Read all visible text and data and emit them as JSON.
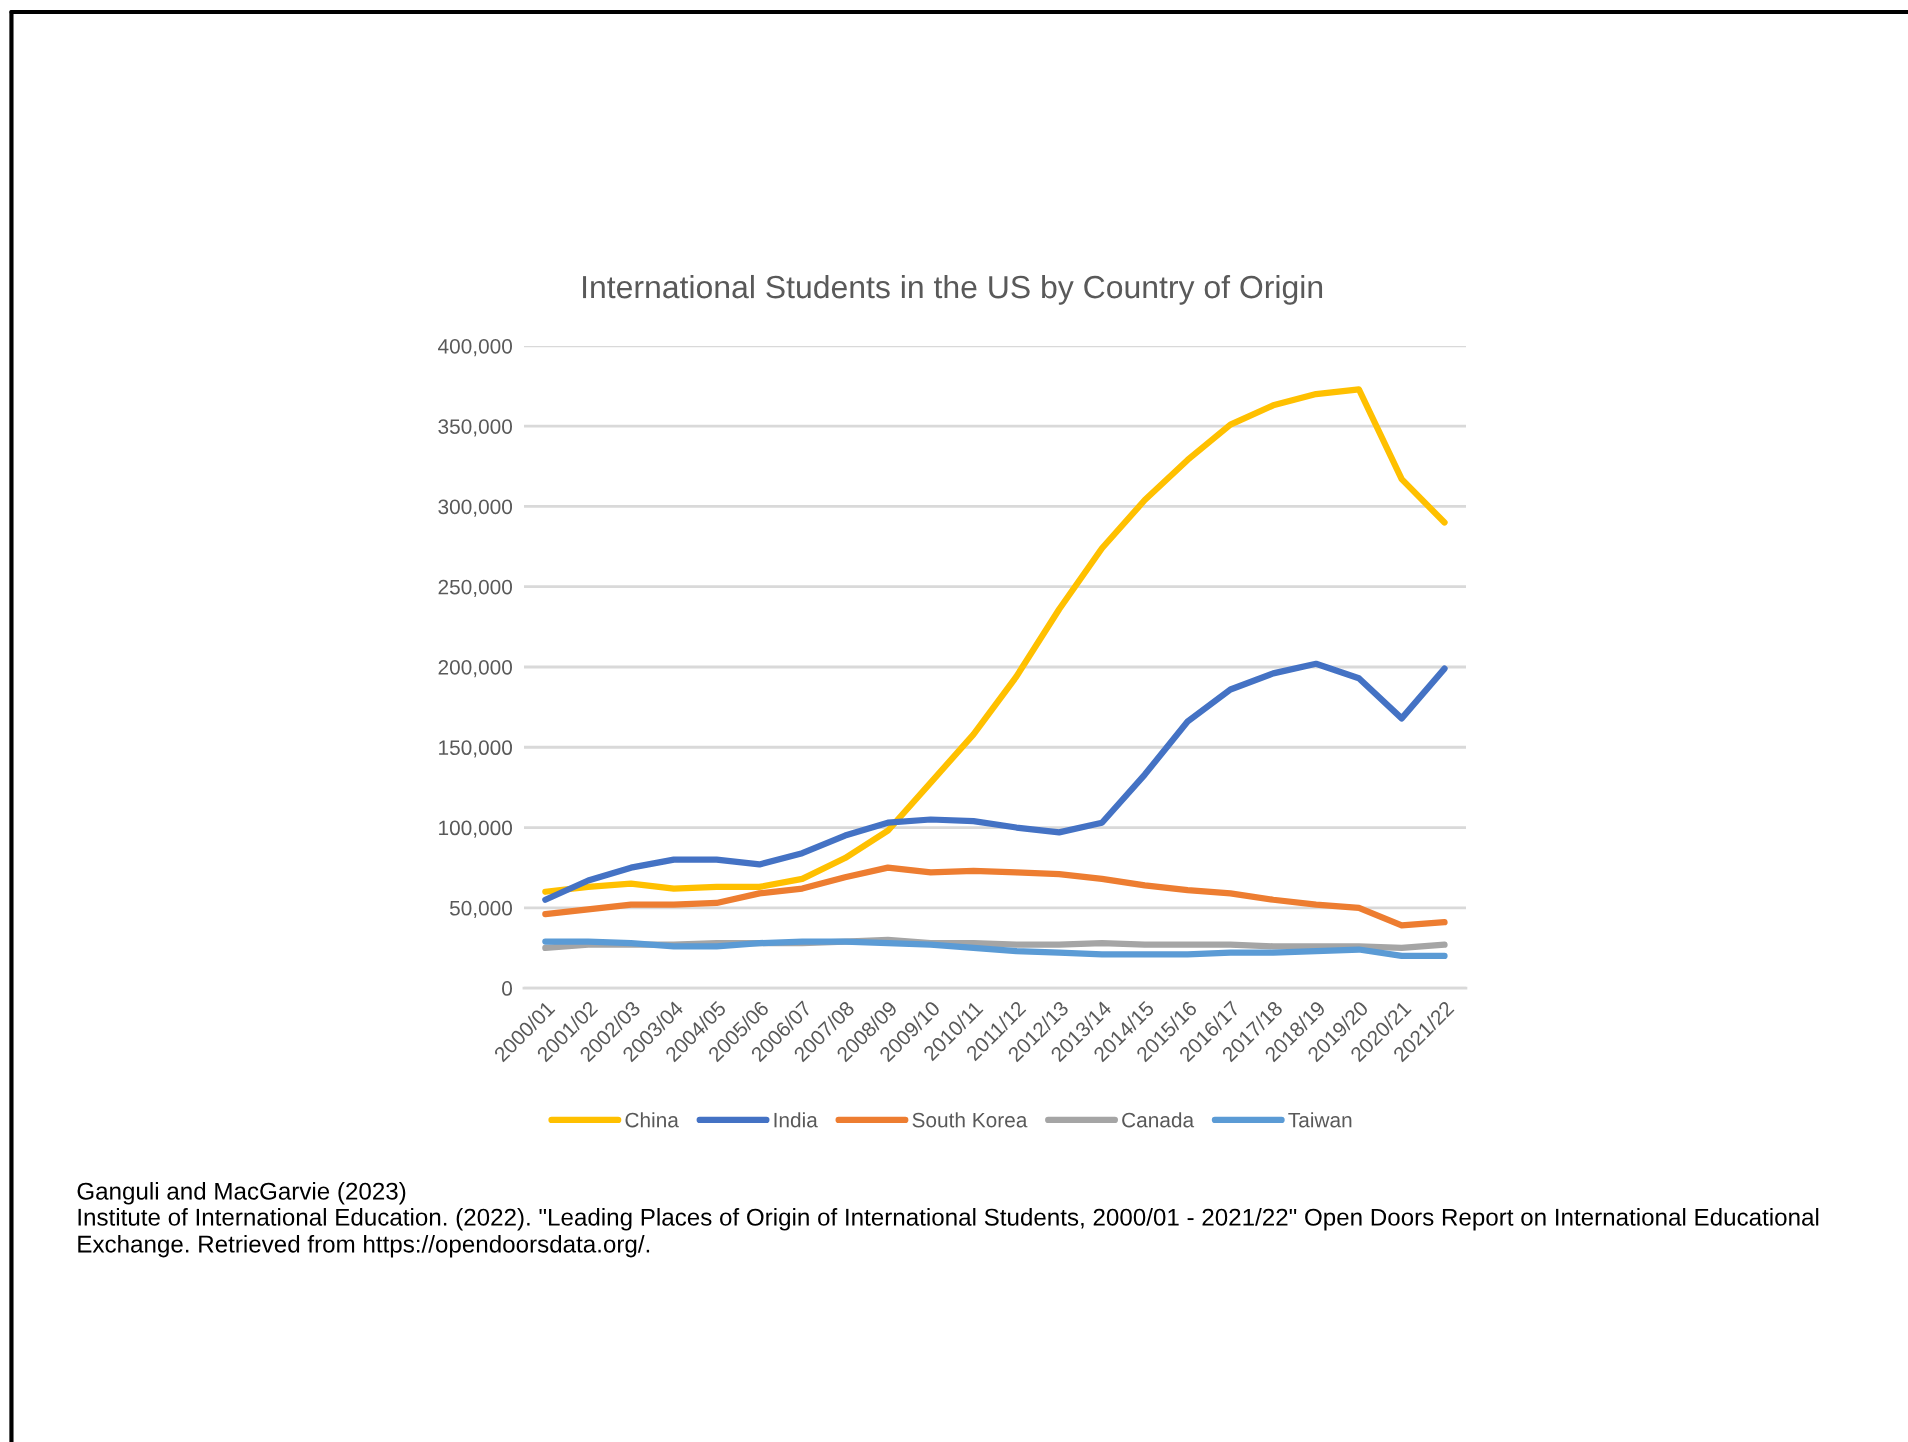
{
  "chart_data": {
    "type": "line",
    "title": "International Students in the US by Country of Origin",
    "categories": [
      "2000/01",
      "2001/02",
      "2002/03",
      "2003/04",
      "2004/05",
      "2005/06",
      "2006/07",
      "2007/08",
      "2008/09",
      "2009/10",
      "2010/11",
      "2011/12",
      "2012/13",
      "2013/14",
      "2014/15",
      "2015/16",
      "2016/17",
      "2017/18",
      "2018/19",
      "2019/20",
      "2020/21",
      "2021/22"
    ],
    "series": [
      {
        "name": "China",
        "color": "#ffc000",
        "values": [
          60000,
          63000,
          65000,
          62000,
          63000,
          63000,
          68000,
          81000,
          98000,
          128000,
          158000,
          194000,
          236000,
          274000,
          304000,
          329000,
          351000,
          363000,
          370000,
          373000,
          317000,
          290000
        ]
      },
      {
        "name": "India",
        "color": "#4472c4",
        "values": [
          55000,
          67000,
          75000,
          80000,
          80000,
          77000,
          84000,
          95000,
          103000,
          105000,
          104000,
          100000,
          97000,
          103000,
          133000,
          166000,
          186000,
          196000,
          202000,
          193000,
          168000,
          199000
        ]
      },
      {
        "name": "South Korea",
        "color": "#ed7d31",
        "values": [
          46000,
          49000,
          52000,
          52000,
          53000,
          59000,
          62000,
          69000,
          75000,
          72000,
          73000,
          72000,
          71000,
          68000,
          64000,
          61000,
          59000,
          55000,
          52000,
          50000,
          39000,
          41000
        ]
      },
      {
        "name": "Canada",
        "color": "#a5a5a5",
        "values": [
          25000,
          27000,
          27000,
          27000,
          28000,
          28000,
          28000,
          29000,
          30000,
          28000,
          28000,
          27000,
          27000,
          28000,
          27000,
          27000,
          27000,
          26000,
          26000,
          26000,
          25000,
          27000
        ]
      },
      {
        "name": "Taiwan",
        "color": "#5b9bd5",
        "values": [
          29000,
          29000,
          28000,
          26000,
          26000,
          28000,
          29000,
          29000,
          28000,
          27000,
          25000,
          23000,
          22000,
          21000,
          21000,
          21000,
          22000,
          22000,
          23000,
          24000,
          20000,
          20000
        ]
      }
    ],
    "ylim": [
      0,
      400000
    ],
    "yticks": [
      0,
      {
        "value": 50000,
        "label": "50,000"
      },
      {
        "value": 100000,
        "label": "100,000"
      },
      {
        "value": 150000,
        "label": "150,000"
      },
      {
        "value": 200000,
        "label": "200,000"
      },
      {
        "value": 250000,
        "label": "250,000"
      },
      {
        "value": 300000,
        "label": "300,000"
      },
      {
        "value": 350000,
        "label": "350,000"
      },
      {
        "value": 400000,
        "label": "400,000"
      }
    ],
    "grid": "y",
    "legend": "bottom",
    "marker": "none",
    "line_style": "solid",
    "annotations": [
      "Ganguli and MacGarvie (2023)",
      "Institute of International Education. (2022). \"Leading Places of Origin of International Students, 2000/01 - 2021/22\" Open Doors Report on International Educational Exchange. Retrieved from https://opendoorsdata.org/."
    ]
  }
}
